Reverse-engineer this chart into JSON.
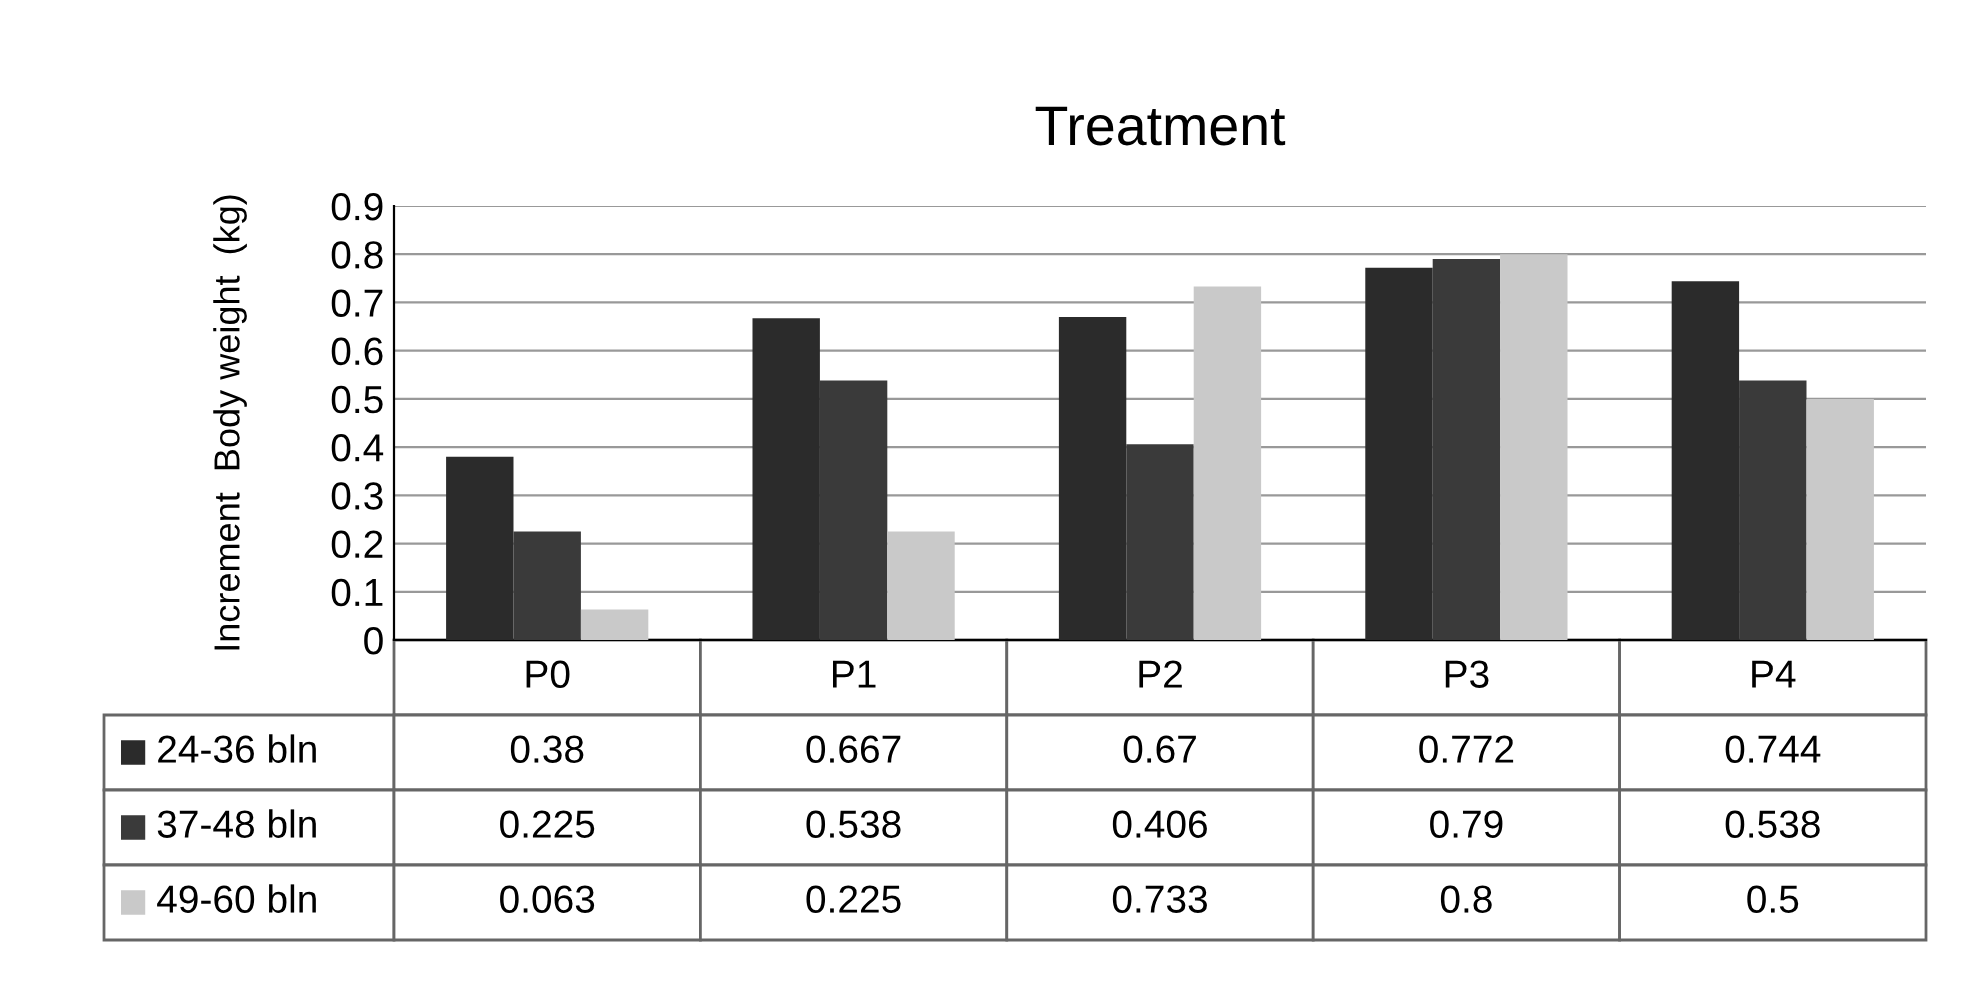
{
  "chart_data": {
    "type": "bar",
    "title": "Treatment",
    "ylabel": "Increment  Body weight  (kg)",
    "categories": [
      "P0",
      "P1",
      "P2",
      "P3",
      "P4"
    ],
    "series": [
      {
        "name": "24-36 bln",
        "color": "#2b2b2b",
        "values": [
          0.38,
          0.667,
          0.67,
          0.772,
          0.744
        ]
      },
      {
        "name": "37-48 bln",
        "color": "#3a3a3a",
        "values": [
          0.225,
          0.538,
          0.406,
          0.79,
          0.538
        ]
      },
      {
        "name": "49-60 bln",
        "color": "#c9c9c9",
        "values": [
          0.063,
          0.225,
          0.733,
          0.8,
          0.5
        ]
      }
    ],
    "ylim": [
      0,
      0.9
    ],
    "yticks": [
      0,
      0.1,
      0.2,
      0.3,
      0.4,
      0.5,
      0.6,
      0.7,
      0.8,
      0.9
    ],
    "grid": "y",
    "legend": "bottom",
    "data_labels": true
  }
}
